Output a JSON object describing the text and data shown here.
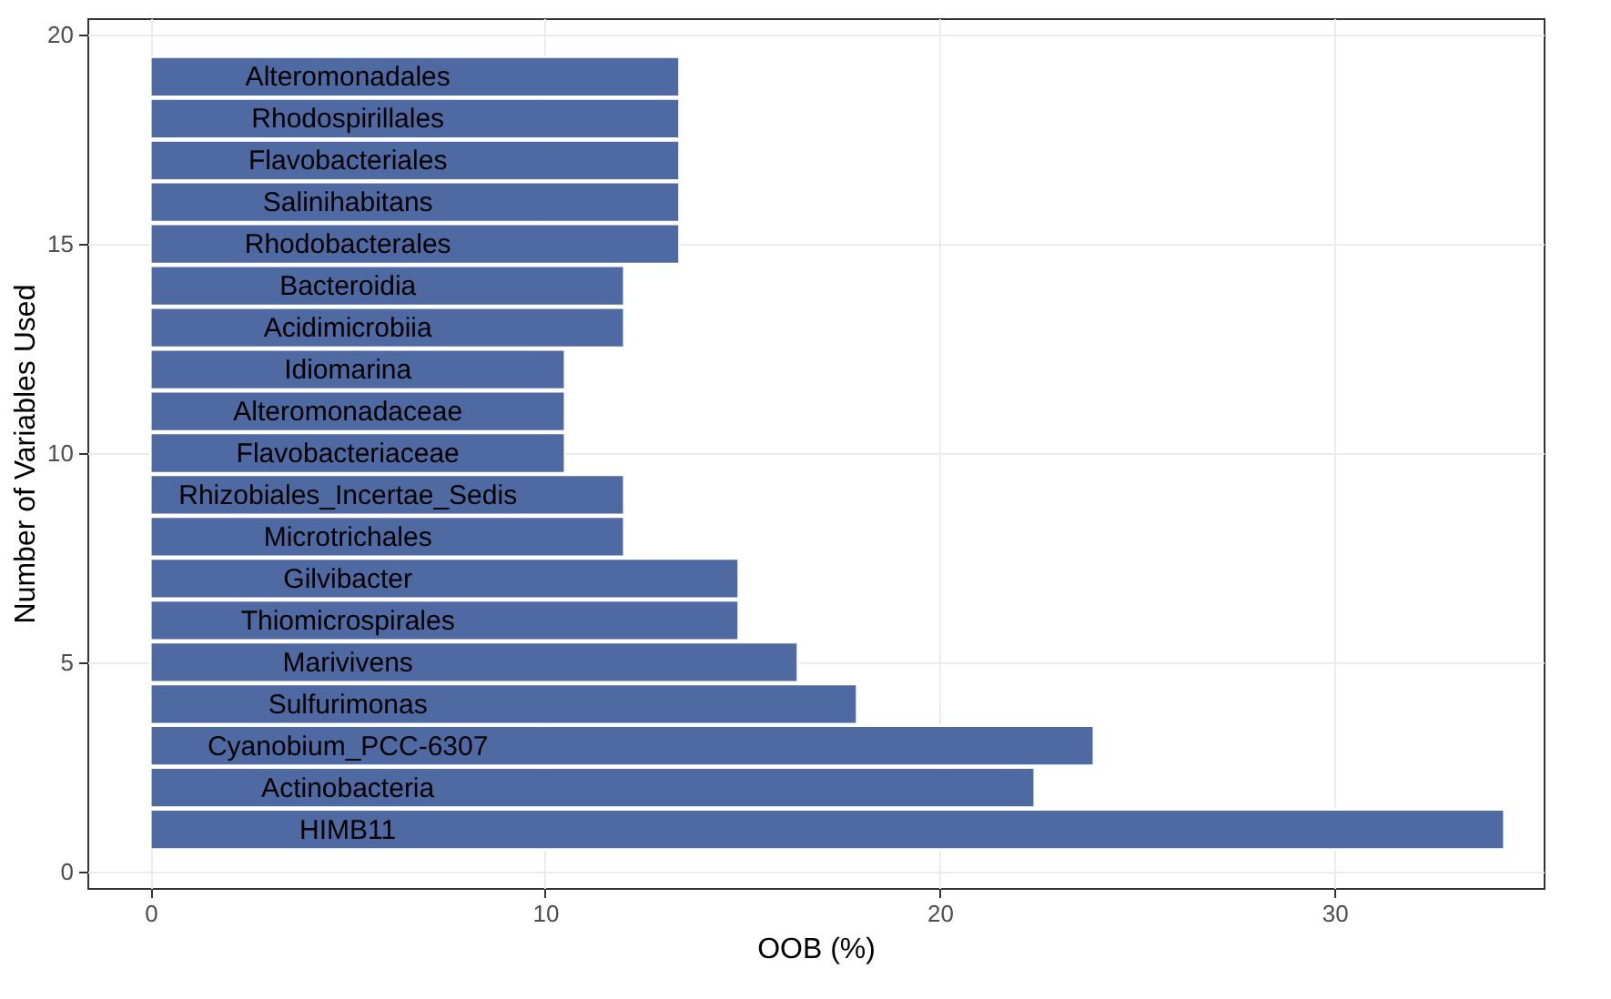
{
  "chart_data": {
    "type": "bar",
    "orientation": "horizontal",
    "xlabel": "OOB (%)",
    "ylabel": "Number of Variables Used",
    "x": [
      1,
      2,
      3,
      4,
      5,
      6,
      7,
      8,
      9,
      10,
      11,
      12,
      13,
      14,
      15,
      16,
      17,
      18,
      19
    ],
    "values": [
      34.3,
      22.4,
      23.9,
      17.9,
      16.4,
      14.9,
      14.9,
      12.0,
      12.0,
      10.5,
      10.5,
      10.5,
      12.0,
      12.0,
      13.4,
      13.4,
      13.4,
      13.4,
      13.4
    ],
    "value_labels": [
      "HIMB11",
      "Actinobacteria",
      "Cyanobium_PCC-6307",
      "Sulfurimonas",
      "Marivivens",
      "Thiomicrospirales",
      "Gilvibacter",
      "Microtrichales",
      "Rhizobiales_Incertae_Sedis",
      "Flavobacteriaceae",
      "Alteromonadaceae",
      "Idiomarina",
      "Acidimicrobiia",
      "Bacteroidia",
      "Rhodobacterales",
      "Salinihabitans",
      "Flavobacteriales",
      "Rhodospirillales",
      "Alteromonadales"
    ],
    "color": "#4f6aa3",
    "xlim": [
      -1.6,
      35.3
    ],
    "xticks": [
      0,
      10,
      20,
      30
    ],
    "ylim": [
      -0.4,
      20.4
    ],
    "yticks": [
      0,
      5,
      10,
      15,
      20
    ],
    "grid": true
  }
}
